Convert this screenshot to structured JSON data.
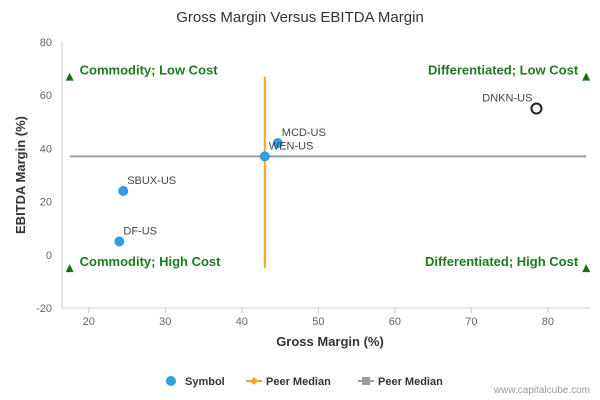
{
  "chart_data": {
    "type": "scatter",
    "title": "Gross Margin Versus EBITDA Margin",
    "xlabel": "Gross Margin (%)",
    "ylabel": "EBITDA Margin (%)",
    "xlim": [
      16.5,
      85.5
    ],
    "ylim": [
      -20,
      80
    ],
    "x_ticks": [
      20,
      30,
      40,
      50,
      60,
      70,
      80
    ],
    "y_ticks": [
      -20,
      0,
      20,
      40,
      60,
      80
    ],
    "points": [
      {
        "label": "DNKN-US",
        "x": 78.5,
        "y": 55,
        "style": "hollow"
      },
      {
        "label": "MCD-US",
        "x": 44.7,
        "y": 42,
        "style": "filled"
      },
      {
        "label": "WEN-US",
        "x": 43.0,
        "y": 37,
        "style": "filled"
      },
      {
        "label": "SBUX-US",
        "x": 24.5,
        "y": 24,
        "style": "filled"
      },
      {
        "label": "DF-US",
        "x": 24.0,
        "y": 5,
        "style": "filled"
      }
    ],
    "peer_median_x": 43.0,
    "peer_median_x_yrange": [
      -5,
      67
    ],
    "peer_median_y": 37,
    "peer_median_y_xrange": [
      17.5,
      85
    ],
    "quadrants": [
      {
        "label": "Commodity; Low Cost",
        "corner": "top-left"
      },
      {
        "label": "Differentiated; Low Cost",
        "corner": "top-right"
      },
      {
        "label": "Commodity; High Cost",
        "corner": "bottom-left"
      },
      {
        "label": "Differentiated; High Cost",
        "corner": "bottom-right"
      }
    ],
    "legend": [
      {
        "name": "Symbol",
        "marker": "circle"
      },
      {
        "name": "Peer Median",
        "marker": "line-diamond"
      },
      {
        "name": "Peer Median",
        "marker": "line-square"
      }
    ],
    "legend_position": "bottom",
    "colors": {
      "symbol": "#2f9ee5",
      "hollow_outline": "#222222",
      "median_x": "#f5a623",
      "median_y": "#9e9e9e",
      "quadrant_text": "#1f7a1f",
      "triangle": "#1a6e1a",
      "axis": "#c0d0e0"
    },
    "grid": false
  },
  "credit": "www.capitalcube.com"
}
